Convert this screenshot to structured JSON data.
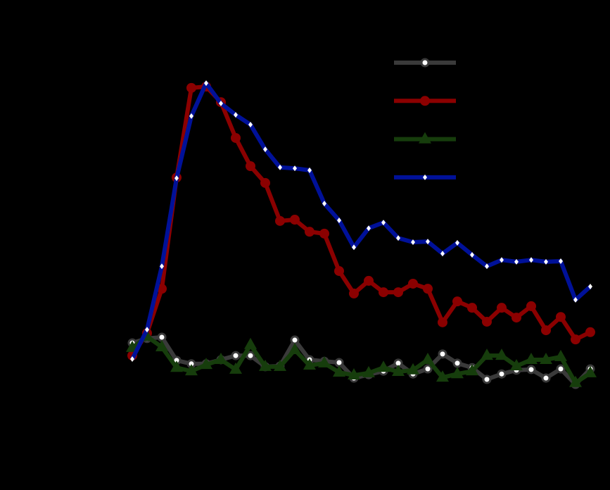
{
  "chart_data": {
    "type": "line",
    "categories": [
      null,
      null,
      null,
      null,
      null,
      null,
      null,
      null,
      null,
      null,
      null,
      null,
      null,
      null,
      null,
      null,
      null,
      null,
      null,
      null,
      null,
      null,
      null,
      null,
      null,
      null,
      null,
      null,
      null,
      null,
      null,
      null
    ],
    "ylim": [
      0,
      100
    ],
    "series": [
      {
        "color": "#3a3a3a",
        "marker": "circle",
        "values": [
          16.2,
          17.6,
          18,
          10.7,
          9.6,
          9.6,
          10.9,
          12.2,
          12.2,
          8.7,
          8.9,
          17.1,
          10.9,
          10.4,
          10,
          5.1,
          6.2,
          7.3,
          9.8,
          6.4,
          8,
          12.7,
          9.8,
          8.4,
          4.7,
          6.4,
          7.6,
          7.8,
          5.1,
          8,
          3.1,
          8
        ]
      },
      {
        "color": "#8b0000",
        "marker": "dot",
        "values": [
          12.2,
          19.3,
          33.3,
          68.4,
          96.7,
          97.1,
          92.2,
          80.9,
          72,
          66.7,
          54.7,
          55.1,
          51.3,
          50.7,
          38.9,
          31.8,
          35.8,
          32.2,
          32.2,
          34.9,
          33.3,
          22.7,
          29.3,
          27.3,
          22.9,
          27.3,
          24.2,
          27.8,
          20.2,
          24.4,
          17.3,
          19.6
        ]
      },
      {
        "color": "#163d0c",
        "marker": "triangle",
        "values": [
          14.7,
          18.2,
          14.9,
          8.4,
          7.3,
          9.3,
          10.9,
          7.8,
          15.6,
          8.7,
          8.7,
          14,
          9.1,
          9.8,
          6.9,
          6,
          6.7,
          8.4,
          7.1,
          7.6,
          10.9,
          5.3,
          6.4,
          7.3,
          12.2,
          12.2,
          8.9,
          10.9,
          10.9,
          11.8,
          3.6,
          6.7
        ]
      },
      {
        "color": "#001199",
        "marker": "diamond",
        "values": [
          11.1,
          20.4,
          40.4,
          68.2,
          87.8,
          98.2,
          91.8,
          88.2,
          85.1,
          77.3,
          71.6,
          71.3,
          70.7,
          60.2,
          54.9,
          46.4,
          52.4,
          54.2,
          49.3,
          48,
          48.2,
          44.4,
          47.8,
          44,
          40.4,
          42.4,
          41.8,
          42.4,
          41.8,
          42,
          29.8,
          34
        ]
      }
    ]
  }
}
